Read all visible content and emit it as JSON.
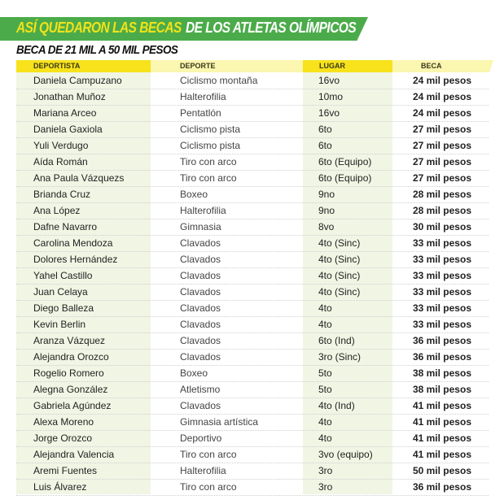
{
  "title": {
    "part1": "ASÍ QUEDARON LAS BECAS",
    "part2": "DE LOS ATLETAS OLÍMPICOS"
  },
  "subtitle": "BECA DE 21 MIL A 50 MIL PESOS",
  "colors": {
    "banner": "#4bab4a",
    "title_yellow": "#f2e21a",
    "header_yellow": "#f7e21b",
    "header_light": "#fbf6b0",
    "column_tint": "#f1f5e4"
  },
  "headers": [
    "DEPORTISTA",
    "DEPORTE",
    "LUGAR",
    "BECA"
  ],
  "rows": [
    [
      "Daniela Campuzano",
      "Ciclismo montaña",
      "16vo",
      "24 mil pesos"
    ],
    [
      "Jonathan Muñoz",
      "Halterofilia",
      "10mo",
      "24 mil pesos"
    ],
    [
      "Mariana Arceo",
      "Pentatlón",
      "16vo",
      "24 mil pesos"
    ],
    [
      "Daniela Gaxiola",
      "Ciclismo pista",
      "6to",
      "27 mil pesos"
    ],
    [
      "Yuli Verdugo",
      "Ciclismo pista",
      "6to",
      "27 mil pesos"
    ],
    [
      "Aída Román",
      "Tiro con arco",
      "6to (Equipo)",
      "27 mil pesos"
    ],
    [
      "Ana Paula Vázquezs",
      "Tiro con arco",
      "6to (Equipo)",
      "27 mil pesos"
    ],
    [
      "Brianda Cruz",
      "Boxeo",
      "9no",
      "28 mil pesos"
    ],
    [
      "Ana López",
      "Halterofilia",
      "9no",
      "28 mil pesos"
    ],
    [
      "Dafne Navarro",
      "Gimnasia",
      "8vo",
      "30 mil pesos"
    ],
    [
      "Carolina Mendoza",
      "Clavados",
      "4to (Sinc)",
      "33 mil pesos"
    ],
    [
      "Dolores Hernández",
      "Clavados",
      "4to (Sinc)",
      "33 mil pesos"
    ],
    [
      "Yahel Castillo",
      "Clavados",
      "4to (Sinc)",
      "33 mil pesos"
    ],
    [
      "Juan Celaya",
      "Clavados",
      "4to (Sinc)",
      "33 mil pesos"
    ],
    [
      "Diego Balleza",
      "Clavados",
      "4to",
      "33 mil pesos"
    ],
    [
      "Kevin Berlin",
      "Clavados",
      "4to",
      "33 mil pesos"
    ],
    [
      "Aranza Vázquez",
      "Clavados",
      "6to (Ind)",
      "36 mil pesos"
    ],
    [
      "Alejandra Orozco",
      "Clavados",
      "3ro (Sinc)",
      "36 mil pesos"
    ],
    [
      "Rogelio Romero",
      "Boxeo",
      "5to",
      "38 mil pesos"
    ],
    [
      "Alegna González",
      "Atletismo",
      "5to",
      "38 mil pesos"
    ],
    [
      "Gabriela Agúndez",
      "Clavados",
      "4to (Ind)",
      "41 mil pesos"
    ],
    [
      "Alexa Moreno",
      "Gimnasia artística",
      "4to",
      "41 mil pesos"
    ],
    [
      "Jorge Orozco",
      "Deportivo",
      "4to",
      "41 mil pesos"
    ],
    [
      "Alejandra Valencia",
      "Tiro con arco",
      "3vo (equipo)",
      "41 mil pesos"
    ],
    [
      "Aremi Fuentes",
      "Halterofilia",
      "3ro",
      "50 mil pesos"
    ],
    [
      "Luis Álvarez",
      "Tiro con arco",
      "3ro",
      "36 mil pesos"
    ]
  ]
}
